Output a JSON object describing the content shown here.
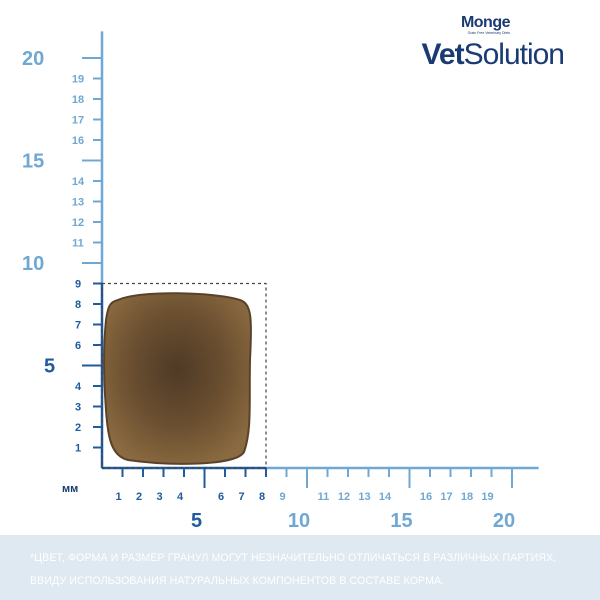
{
  "brand": {
    "monge": "Monge",
    "tagline": "Grain Free Veterinary Diets",
    "vet_bold": "Vet",
    "vet_rest": "Solution"
  },
  "ruler": {
    "unit": "мм",
    "x_small_ticks": [
      "1",
      "2",
      "3",
      "4",
      "6",
      "7",
      "8",
      "9",
      "11",
      "12",
      "13",
      "14",
      "16",
      "17",
      "18",
      "19"
    ],
    "x_major_ticks": [
      "5",
      "10",
      "15",
      "20"
    ],
    "y_small_ticks": [
      "1",
      "2",
      "3",
      "4",
      "6",
      "7",
      "8",
      "9",
      "11",
      "12",
      "13",
      "14",
      "16",
      "17",
      "18",
      "19"
    ],
    "y_major_ticks": [
      "5",
      "10",
      "15",
      "20"
    ]
  },
  "kibble": {
    "width_mm": 8,
    "height_mm": 9,
    "color": "#6b4f30"
  },
  "colors": {
    "axis_dark": "#1f5b9e",
    "axis_light": "#6fa8d2",
    "brand": "#1a3a73",
    "footnote_bg": "#dfe9f1"
  },
  "footnote": {
    "text": "*Цвет, форма и размер гранул могут незначительно отличаться в различных партиях, ввиду использования натуральных компонентов в составе корма."
  }
}
